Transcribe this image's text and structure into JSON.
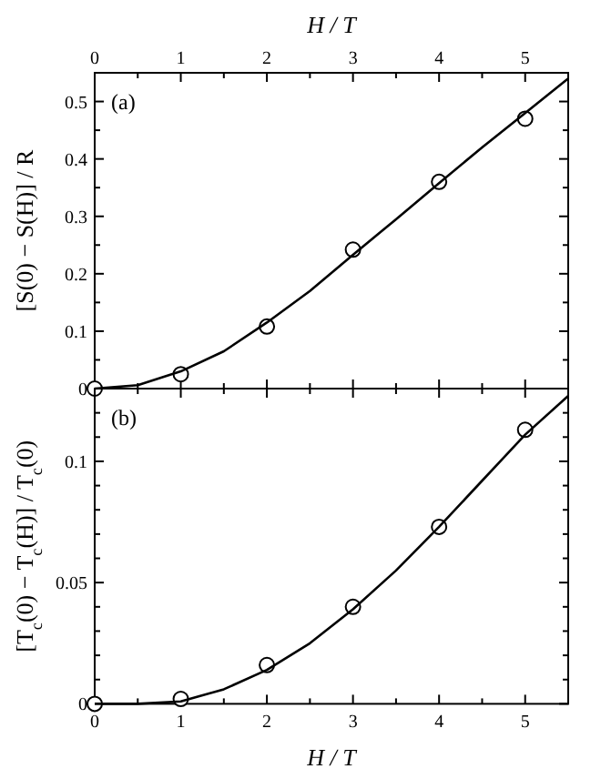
{
  "chart_data": [
    {
      "type": "scatter",
      "xlabel": "H / T",
      "ylabel": "[S(0) − S(H)] / R",
      "xlim": [
        0,
        5.5
      ],
      "xticks": [
        0,
        {
          "value": 0.5,
          "label": null
        },
        1,
        {
          "value": 1.5,
          "label": null
        },
        2,
        {
          "value": 2.5,
          "label": null
        },
        3,
        {
          "value": 3.5,
          "label": null
        },
        4,
        {
          "value": 4.5,
          "label": null
        },
        5
      ],
      "ylim": [
        0,
        0.55
      ],
      "yticks": [
        0,
        {
          "value": 0.05,
          "label": null
        },
        0.1,
        {
          "value": 0.15,
          "label": null
        },
        0.2,
        {
          "value": 0.25,
          "label": null
        },
        0.3,
        {
          "value": 0.35,
          "label": null
        },
        0.4,
        {
          "value": 0.45,
          "label": null
        },
        0.5
      ],
      "grid": false,
      "annotations": [
        "(a)"
      ],
      "series": [
        {
          "marker": "circle",
          "color": "#000000",
          "x": [
            0,
            1,
            2,
            3,
            4,
            5
          ],
          "values": [
            0,
            0.025,
            0.108,
            0.242,
            0.36,
            0.47
          ]
        },
        {
          "type": "line",
          "marker": "none",
          "color": "#000000",
          "x": [
            0,
            0.5,
            1,
            1.5,
            2,
            2.5,
            3,
            3.5,
            4,
            4.5,
            5,
            5.5
          ],
          "values": [
            0,
            0.006,
            0.03,
            0.065,
            0.115,
            0.17,
            0.233,
            0.295,
            0.358,
            0.42,
            0.48,
            0.54
          ]
        }
      ]
    },
    {
      "type": "scatter",
      "xlabel": "H / T",
      "ylabel": "[T$_{c}$(0) − T$_{c}$(H)] / T$_{c}$(0)",
      "xlim": [
        0,
        5.5
      ],
      "xticks": [
        0,
        {
          "value": 0.5,
          "label": null
        },
        1,
        {
          "value": 1.5,
          "label": null
        },
        2,
        {
          "value": 2.5,
          "label": null
        },
        3,
        {
          "value": 3.5,
          "label": null
        },
        4,
        {
          "value": 4.5,
          "label": null
        },
        5
      ],
      "ylim": [
        0,
        0.13
      ],
      "yticks": [
        0,
        {
          "value": 0.01,
          "label": null
        },
        {
          "value": 0.02,
          "label": null
        },
        {
          "value": 0.03,
          "label": null
        },
        {
          "value": 0.04,
          "label": null
        },
        0.05,
        {
          "value": 0.06,
          "label": null
        },
        {
          "value": 0.07,
          "label": null
        },
        {
          "value": 0.08,
          "label": null
        },
        {
          "value": 0.09,
          "label": null
        },
        0.1,
        {
          "value": 0.11,
          "label": null
        },
        {
          "value": 0.12,
          "label": null
        }
      ],
      "grid": false,
      "annotations": [
        "(b)"
      ],
      "series": [
        {
          "marker": "circle",
          "color": "#000000",
          "x": [
            0,
            1,
            2,
            3,
            4,
            5
          ],
          "values": [
            0,
            0.002,
            0.016,
            0.04,
            0.073,
            0.113
          ]
        },
        {
          "type": "line",
          "marker": "none",
          "color": "#000000",
          "x": [
            0,
            0.5,
            1,
            1.5,
            2,
            2.5,
            3,
            3.5,
            4,
            4.5,
            5,
            5.5
          ],
          "values": [
            0,
            0,
            0.001,
            0.006,
            0.014,
            0.025,
            0.039,
            0.055,
            0.073,
            0.092,
            0.111,
            0.127
          ]
        }
      ]
    }
  ]
}
